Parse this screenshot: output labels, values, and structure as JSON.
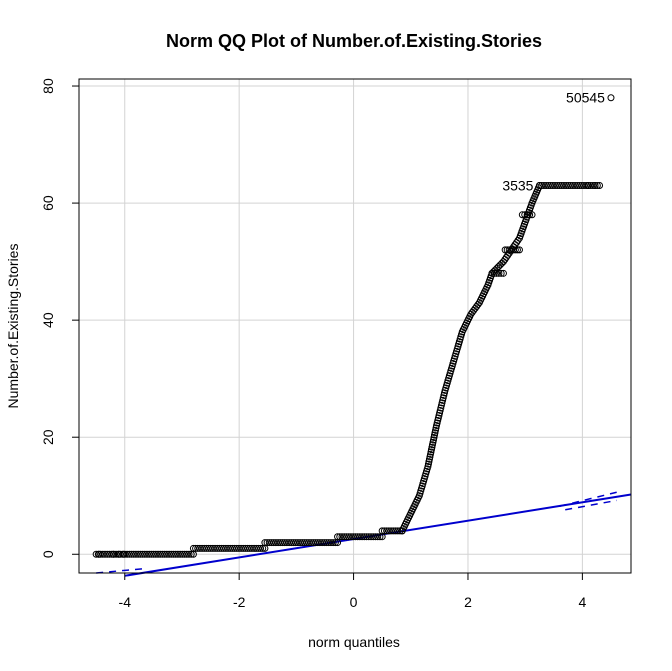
{
  "chart_data": {
    "type": "scatter",
    "title": "Norm QQ Plot of Number.of.Existing.Stories",
    "xlabel": "norm quantiles",
    "ylabel": "Number.of.Existing.Stories",
    "xlim": [
      -4.8,
      4.85
    ],
    "ylim": [
      -3.2,
      81.2
    ],
    "xticks": [
      -4,
      -2,
      0,
      2,
      4
    ],
    "yticks": [
      0,
      20,
      40,
      60,
      80
    ],
    "grid": true,
    "colors": {
      "points": "#000000",
      "reference_line": "#0000cd",
      "grid": "#d3d3d3",
      "axes": "#000000"
    },
    "plateaus": [
      {
        "y": 0,
        "x_from": -4.5,
        "x_to": -2.8
      },
      {
        "y": 1,
        "x_from": -2.8,
        "x_to": -1.55
      },
      {
        "y": 2,
        "x_from": -1.55,
        "x_to": -0.28
      },
      {
        "y": 3,
        "x_from": -0.28,
        "x_to": 0.5
      },
      {
        "y": 4,
        "x_from": 0.5,
        "x_to": 0.85
      },
      {
        "y": 48,
        "x_from": 2.42,
        "x_to": 2.62
      },
      {
        "y": 52,
        "x_from": 2.65,
        "x_to": 2.9
      },
      {
        "y": 58,
        "x_from": 2.95,
        "x_to": 3.12
      },
      {
        "y": 63,
        "x_from": 3.25,
        "x_to": 4.3
      }
    ],
    "curve": [
      {
        "x": 0.85,
        "y": 4
      },
      {
        "x": 1.0,
        "y": 7
      },
      {
        "x": 1.15,
        "y": 10
      },
      {
        "x": 1.3,
        "y": 15
      },
      {
        "x": 1.45,
        "y": 22
      },
      {
        "x": 1.6,
        "y": 28
      },
      {
        "x": 1.75,
        "y": 33
      },
      {
        "x": 1.9,
        "y": 38
      },
      {
        "x": 2.05,
        "y": 41
      },
      {
        "x": 2.2,
        "y": 43
      },
      {
        "x": 2.35,
        "y": 46
      },
      {
        "x": 2.42,
        "y": 48
      },
      {
        "x": 2.62,
        "y": 50
      },
      {
        "x": 2.9,
        "y": 54
      },
      {
        "x": 3.12,
        "y": 60
      },
      {
        "x": 3.25,
        "y": 63
      }
    ],
    "labeled_points": [
      {
        "label": "3535",
        "x": 3.25,
        "y": 63
      },
      {
        "label": "50545",
        "x": 4.5,
        "y": 78
      }
    ],
    "reference_line": {
      "intercept": 2.6,
      "slope": 1.57
    },
    "confidence_band": {
      "lower_at_x_minus_4": -3.2,
      "upper_at_x_4_6": 10.5
    }
  }
}
